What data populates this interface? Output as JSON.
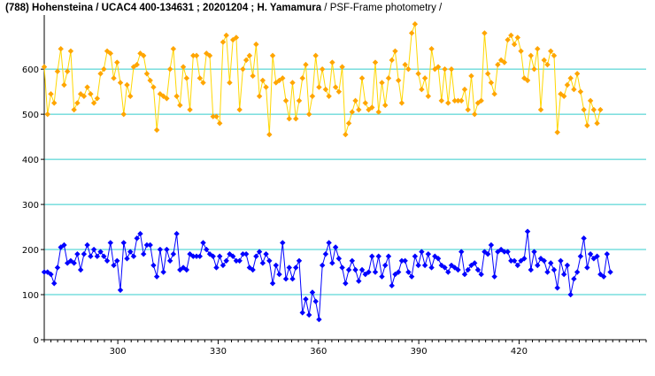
{
  "chart_data": {
    "type": "scatter",
    "title_bold": "(788) Hohensteina / UCAC4 400-134631 ; 20201204 ; H. Yamamura",
    "title_rest": " / PSF-Frame photometry /",
    "xlabel": "",
    "ylabel": "",
    "xlim": [
      278,
      458
    ],
    "ylim": [
      0,
      720
    ],
    "x_ticks": [
      300,
      330,
      360,
      390,
      420
    ],
    "y_ticks": [
      0,
      100,
      200,
      300,
      400,
      500,
      600
    ],
    "grid_y": [
      100,
      200,
      300,
      400,
      500,
      600
    ],
    "grid_color": "#33cccc",
    "colors": {
      "upper": "#ffd700",
      "upper_marker": "#ffa500",
      "lower": "#0000ff",
      "lower_marker": "#0000ff"
    },
    "series": [
      {
        "x_start": 278,
        "x_step": 0.99,
        "values": [
          605,
          500,
          545,
          525,
          595,
          645,
          565,
          595,
          640,
          510,
          525,
          545,
          540,
          560,
          545,
          525,
          535,
          590,
          600,
          640,
          635,
          580,
          615,
          570,
          500,
          565,
          540,
          605,
          610,
          635,
          630,
          590,
          575,
          560,
          465,
          545,
          540,
          535,
          600,
          645,
          540,
          520,
          605,
          580,
          510,
          630,
          630,
          580,
          570,
          635,
          630,
          495,
          495,
          480,
          660,
          675,
          570,
          665,
          670,
          510,
          600,
          620,
          630,
          585,
          655,
          540,
          575,
          560,
          455,
          630,
          570,
          575,
          580,
          530,
          490,
          570,
          490,
          530,
          580,
          610,
          500,
          540,
          630,
          560,
          600,
          555,
          540,
          615,
          560,
          550,
          605,
          455,
          480,
          505,
          530,
          510,
          580,
          525,
          510,
          515,
          615,
          505,
          570,
          520,
          580,
          620,
          640,
          575,
          525,
          610,
          600,
          680,
          700,
          590,
          555,
          580,
          540,
          645,
          600,
          605,
          530,
          600,
          525,
          600,
          530,
          530,
          530,
          555,
          510,
          585,
          500,
          525,
          530,
          680,
          590,
          570,
          545,
          610,
          620,
          615,
          665,
          675,
          655,
          670,
          640,
          580,
          575,
          630,
          600,
          645,
          510,
          620,
          610,
          640,
          630,
          460,
          545,
          540,
          565,
          580,
          555,
          590,
          550,
          510,
          475,
          530,
          510,
          480,
          510
        ]
      },
      {
        "x_start": 278,
        "x_step": 0.99,
        "values": [
          150,
          150,
          145,
          125,
          160,
          205,
          210,
          170,
          175,
          170,
          190,
          155,
          190,
          210,
          185,
          200,
          185,
          195,
          185,
          175,
          215,
          165,
          175,
          110,
          215,
          180,
          195,
          185,
          225,
          235,
          190,
          210,
          210,
          165,
          140,
          200,
          150,
          200,
          175,
          190,
          235,
          155,
          160,
          155,
          190,
          185,
          185,
          185,
          215,
          200,
          190,
          185,
          160,
          185,
          165,
          175,
          190,
          185,
          175,
          175,
          190,
          190,
          160,
          155,
          185,
          195,
          170,
          190,
          175,
          125,
          165,
          145,
          215,
          135,
          160,
          135,
          160,
          175,
          60,
          90,
          55,
          105,
          85,
          45,
          165,
          190,
          215,
          170,
          205,
          180,
          160,
          125,
          155,
          175,
          155,
          130,
          155,
          145,
          150,
          185,
          150,
          185,
          140,
          165,
          185,
          120,
          145,
          150,
          175,
          175,
          150,
          140,
          185,
          165,
          195,
          165,
          190,
          160,
          185,
          180,
          165,
          160,
          150,
          165,
          160,
          155,
          195,
          145,
          155,
          165,
          170,
          155,
          145,
          195,
          190,
          210,
          140,
          195,
          200,
          195,
          195,
          175,
          175,
          165,
          175,
          180,
          240,
          155,
          195,
          165,
          180,
          175,
          150,
          170,
          155,
          115,
          175,
          145,
          165,
          100,
          135,
          150,
          185,
          225,
          160,
          190,
          180,
          185,
          145,
          140,
          190,
          150
        ]
      }
    ]
  }
}
